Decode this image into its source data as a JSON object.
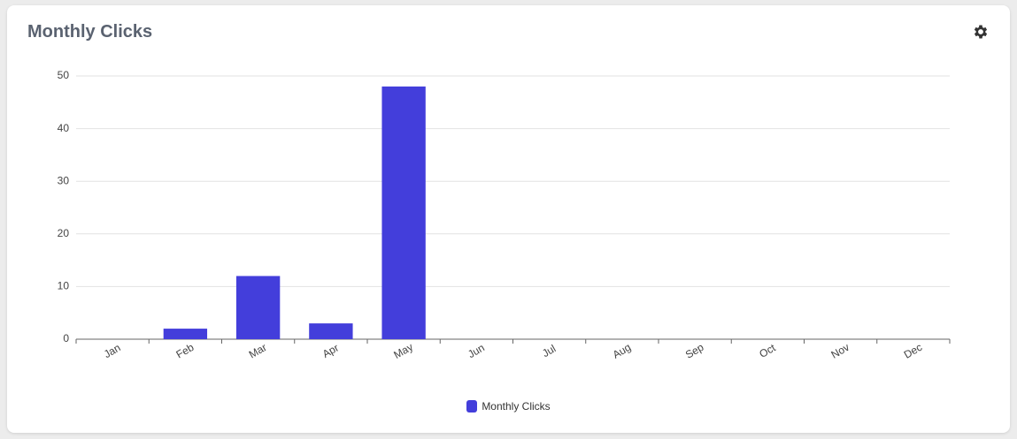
{
  "chart_data": {
    "type": "bar",
    "title": "Monthly Clicks",
    "categories": [
      "Jan",
      "Feb",
      "Mar",
      "Apr",
      "May",
      "Jun",
      "Jul",
      "Aug",
      "Sep",
      "Oct",
      "Nov",
      "Dec"
    ],
    "series": [
      {
        "name": "Monthly Clicks",
        "color": "#433edb",
        "values": [
          0,
          2,
          12,
          3,
          48,
          0,
          0,
          0,
          0,
          0,
          0,
          0
        ]
      }
    ],
    "ylim": [
      0,
      50
    ],
    "yticks": [
      0,
      10,
      20,
      30,
      40,
      50
    ],
    "grid": true,
    "legend": "bottom"
  }
}
